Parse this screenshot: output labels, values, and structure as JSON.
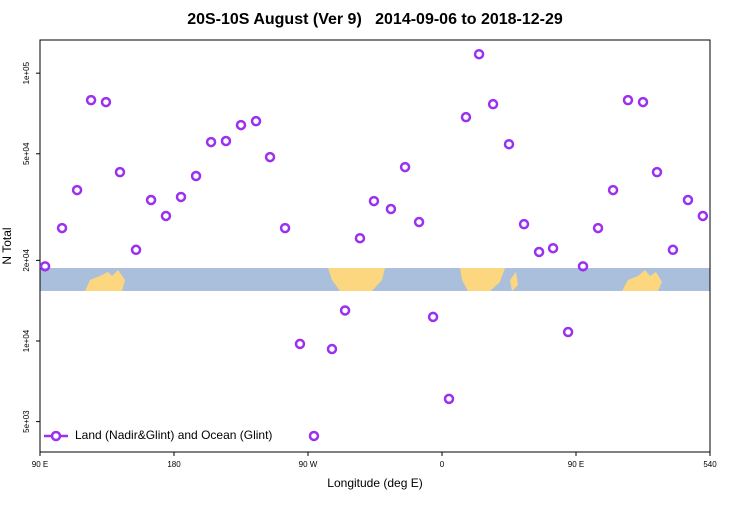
{
  "chart_data": {
    "type": "scatter",
    "title": "20S-10S August (Ver 9)   2014-09-06 to 2018-12-29",
    "x_label": "Longitude (deg E)",
    "y_label": "N Total",
    "log_y": true,
    "legend": "bottom-left",
    "xlim": [
      90,
      540
    ],
    "xticks": [
      {
        "value": 90,
        "label": "90 E"
      },
      180,
      {
        "value": 270,
        "label": "90 W"
      },
      {
        "value": 360,
        "label": "0"
      },
      {
        "value": 450,
        "label": "90 E"
      },
      540
    ],
    "ylim": [
      3850,
      133000
    ],
    "yticks": [
      {
        "value": 5000,
        "label": "5e+03"
      },
      {
        "value": 10000,
        "label": "1e+04"
      },
      {
        "value": 20000,
        "label": "2e+04"
      },
      {
        "value": 50000,
        "label": "5e+04"
      },
      {
        "value": 100000,
        "label": "1e+05"
      }
    ],
    "series": [
      {
        "name": "Land (Nadir&Glint) and Ocean (Glint)",
        "color": "#9b30f0",
        "x": [
          93.4,
          104.8,
          114.9,
          124.3,
          134.3,
          143.7,
          154.5,
          164.6,
          174.6,
          184.7,
          194.8,
          204.9,
          214.9,
          225.0,
          235.1,
          244.5,
          254.6,
          264.6,
          274.0,
          286.1,
          294.9,
          304.9,
          314.3,
          325.7,
          335.2,
          344.6,
          354.0,
          364.7,
          376.1,
          384.9,
          394.3,
          405.0,
          415.1,
          425.2,
          434.6,
          444.7,
          454.7,
          464.8,
          474.9,
          484.9,
          495.0,
          504.4,
          515.1,
          525.2,
          535.2
        ],
        "values": [
          19000,
          26400,
          36600,
          79300,
          78000,
          42700,
          21900,
          33600,
          29300,
          34500,
          41300,
          55300,
          55800,
          64000,
          66200,
          48600,
          26400,
          9750,
          4420,
          9330,
          13000,
          24200,
          33300,
          31100,
          44600,
          27800,
          12300,
          6080,
          68500,
          117700,
          76600,
          54300,
          27300,
          21500,
          22200,
          10800,
          19000,
          26400,
          36600,
          79300,
          78000,
          42700,
          21900,
          33600,
          29300
        ]
      }
    ]
  }
}
